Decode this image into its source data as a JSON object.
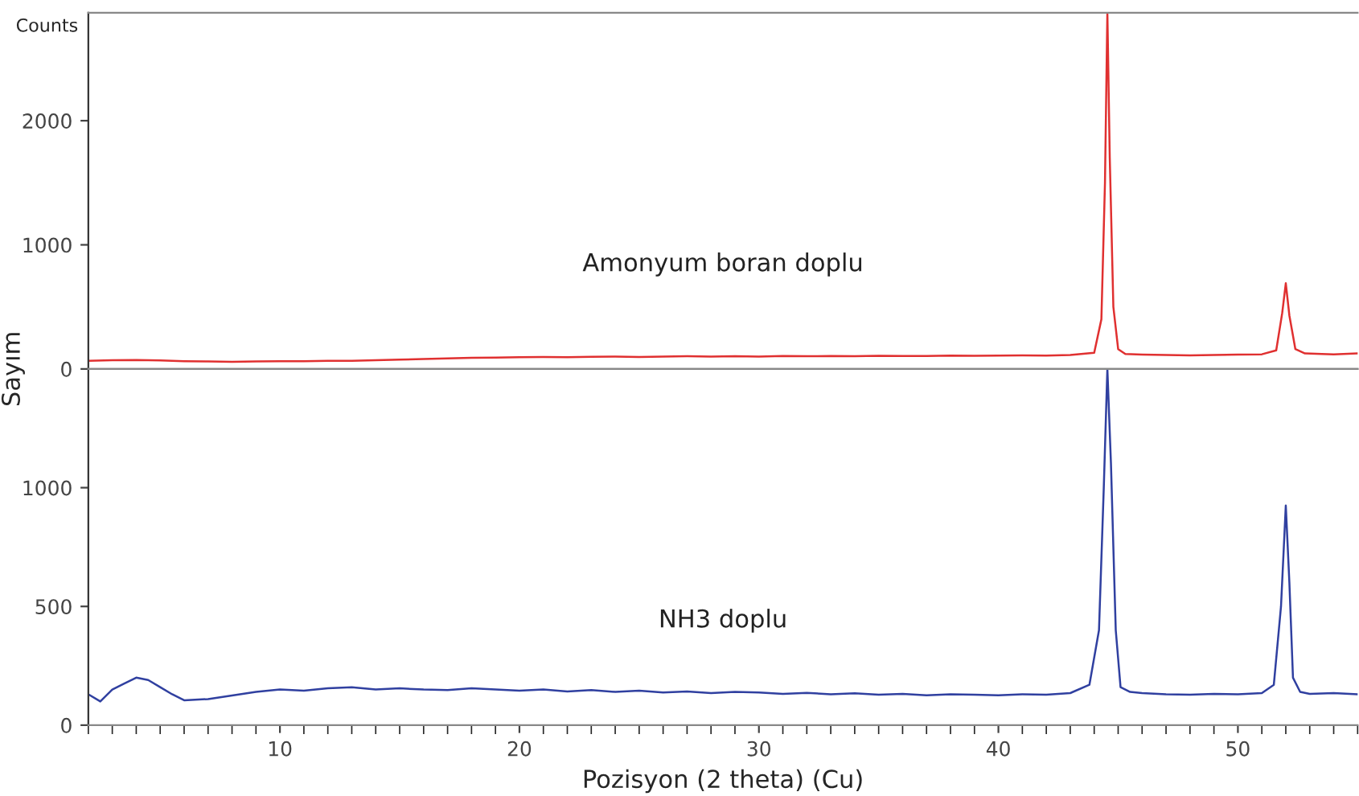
{
  "chart_data": [
    {
      "type": "line",
      "ylabel": "Sayım",
      "annotations": [
        "Counts"
      ],
      "tick_labels": "y",
      "xlim": [
        2,
        55
      ],
      "ylim": [
        0,
        2870
      ],
      "yticks": [
        0,
        1000,
        2000
      ],
      "grid": false,
      "legend": false,
      "line_style": "solid",
      "marker": "none",
      "series": [
        {
          "name": "Amonyum boran doplu",
          "color": "#e03030",
          "x": [
            2,
            3,
            4,
            5,
            6,
            7,
            8,
            9,
            10,
            11,
            12,
            13,
            14,
            15,
            16,
            17,
            18,
            19,
            20,
            21,
            22,
            23,
            24,
            25,
            26,
            27,
            28,
            29,
            30,
            31,
            32,
            33,
            34,
            35,
            36,
            37,
            38,
            39,
            40,
            41,
            42,
            43,
            44,
            44.3,
            44.45,
            44.55,
            44.65,
            44.8,
            45,
            45.3,
            46,
            47,
            48,
            49,
            50,
            51,
            51.6,
            51.85,
            52,
            52.15,
            52.4,
            52.8,
            53.5,
            54,
            55
          ],
          "values": [
            65,
            70,
            72,
            68,
            62,
            60,
            58,
            60,
            62,
            63,
            65,
            66,
            70,
            75,
            80,
            85,
            90,
            92,
            95,
            97,
            95,
            98,
            100,
            97,
            100,
            102,
            100,
            103,
            100,
            104,
            102,
            105,
            103,
            106,
            104,
            105,
            108,
            106,
            108,
            110,
            108,
            112,
            130,
            400,
            1500,
            2870,
            1700,
            500,
            160,
            120,
            115,
            112,
            110,
            112,
            115,
            118,
            150,
            450,
            690,
            430,
            160,
            125,
            120,
            118,
            125
          ]
        }
      ]
    },
    {
      "type": "line",
      "xlabel": "Pozisyon (2 theta) (Cu)",
      "xlim": [
        2,
        55
      ],
      "xticks": [
        10,
        20,
        30,
        40,
        50
      ],
      "ylim": [
        0,
        1500
      ],
      "yticks": [
        0,
        500,
        1000
      ],
      "grid": false,
      "legend": false,
      "line_style": "solid",
      "marker": "none",
      "series": [
        {
          "name": "NH3 doplu",
          "color": "#3040a0",
          "x": [
            2,
            2.5,
            3,
            3.5,
            4,
            4.5,
            5,
            5.5,
            6,
            7,
            8,
            9,
            10,
            11,
            12,
            13,
            14,
            15,
            16,
            17,
            18,
            19,
            20,
            21,
            22,
            23,
            24,
            25,
            26,
            27,
            28,
            29,
            30,
            31,
            32,
            33,
            34,
            35,
            36,
            37,
            38,
            39,
            40,
            41,
            42,
            43,
            43.8,
            44.2,
            44.4,
            44.55,
            44.7,
            44.9,
            45.1,
            45.5,
            46,
            47,
            48,
            49,
            50,
            51,
            51.5,
            51.8,
            52,
            52.15,
            52.3,
            52.6,
            53,
            54,
            55
          ],
          "values": [
            130,
            100,
            150,
            175,
            200,
            190,
            160,
            130,
            105,
            110,
            125,
            140,
            150,
            145,
            155,
            160,
            150,
            155,
            150,
            148,
            155,
            150,
            145,
            150,
            142,
            148,
            140,
            145,
            138,
            142,
            135,
            140,
            138,
            132,
            136,
            130,
            134,
            128,
            132,
            126,
            130,
            128,
            126,
            130,
            128,
            135,
            170,
            400,
            1000,
            1500,
            1100,
            400,
            160,
            140,
            135,
            130,
            128,
            132,
            130,
            135,
            170,
            500,
            925,
            600,
            200,
            140,
            132,
            135,
            130
          ]
        }
      ]
    }
  ]
}
